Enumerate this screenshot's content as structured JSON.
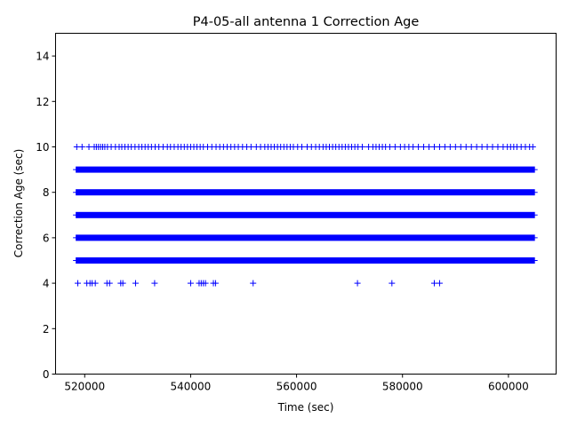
{
  "chart_data": {
    "type": "scatter",
    "title": "P4-05-all antenna 1 Correction Age",
    "xlabel": "Time (sec)",
    "ylabel": "Correction Age (sec)",
    "xlim": [
      514500,
      609000
    ],
    "ylim": [
      0,
      15
    ],
    "xticks": [
      520000,
      540000,
      560000,
      580000,
      600000
    ],
    "xtick_labels": [
      "520000",
      "540000",
      "560000",
      "580000",
      "600000"
    ],
    "yticks": [
      0,
      2,
      4,
      6,
      8,
      10,
      12,
      14
    ],
    "ytick_labels": [
      "0",
      "2",
      "4",
      "6",
      "8",
      "10",
      "12",
      "14"
    ],
    "marker": "+",
    "color": "#0000ff",
    "grid": false,
    "legend": "none",
    "continuous_bands": [
      {
        "y": 5,
        "x_start": 518300,
        "x_end": 605000
      },
      {
        "y": 6,
        "x_start": 518300,
        "x_end": 605000
      },
      {
        "y": 7,
        "x_start": 518300,
        "x_end": 605000
      },
      {
        "y": 8,
        "x_start": 518300,
        "x_end": 605000
      },
      {
        "y": 9,
        "x_start": 518300,
        "x_end": 605000
      }
    ],
    "sparse_points": [
      {
        "y": 10,
        "x": [
          518500,
          519500,
          520800,
          521800,
          522200,
          522600,
          523000,
          523400,
          523800,
          524300,
          525000,
          525800,
          526500,
          527000,
          527600,
          528200,
          528800,
          529500,
          530200,
          530800,
          531400,
          532000,
          532600,
          533300,
          534000,
          534800,
          535600,
          536200,
          536900,
          537600,
          538200,
          538800,
          539400,
          540000,
          540600,
          541200,
          541800,
          542400,
          543200,
          544000,
          544800,
          545500,
          546200,
          546900,
          547600,
          548300,
          549000,
          549800,
          550600,
          551400,
          552400,
          553200,
          554000,
          554600,
          555200,
          555800,
          556400,
          557000,
          557600,
          558200,
          558800,
          559400,
          560200,
          561000,
          562000,
          562800,
          563600,
          564300,
          565000,
          565600,
          566200,
          566800,
          567400,
          568000,
          568600,
          569200,
          569800,
          570400,
          571000,
          571600,
          572400,
          573600,
          574400,
          575000,
          575600,
          576200,
          576800,
          577600,
          578600,
          579600,
          580400,
          581200,
          582000,
          583000,
          584000,
          585000,
          586000,
          587000,
          588000,
          589000,
          590000,
          591000,
          592000,
          593000,
          594000,
          595000,
          596000,
          597000,
          598000,
          599000,
          599800,
          600400,
          601000,
          601600,
          602400,
          603200,
          604000,
          604600
        ]
      },
      {
        "y": 4,
        "x": [
          518700,
          520400,
          521000,
          521400,
          522000,
          524200,
          524700,
          526800,
          527200,
          529600,
          533200,
          540000,
          541600,
          542000,
          542400,
          542800,
          544300,
          544700,
          551800,
          571500,
          578000,
          586000,
          587000
        ]
      }
    ]
  }
}
